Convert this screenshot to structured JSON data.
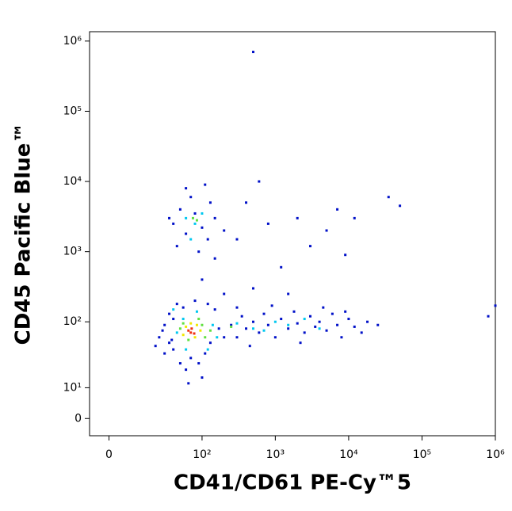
{
  "chart_data": {
    "type": "scatter",
    "xlabel": "CD41/CD61 PE-Cy™5",
    "ylabel": "CD45 Pacific Blue™",
    "xscale": "biexponential",
    "yscale": "biexponential",
    "xlim": [
      -7,
      1000000
    ],
    "ylim": [
      -5,
      1360000
    ],
    "xticks": [
      0,
      {
        "value": 100,
        "label": "10²"
      },
      {
        "value": 1000,
        "label": "10³"
      },
      {
        "value": 10000,
        "label": "10⁴"
      },
      {
        "value": 100000,
        "label": "10⁵"
      },
      {
        "value": 1000000,
        "label": "10⁶"
      }
    ],
    "yticks": [
      0,
      {
        "value": 10,
        "label": "10¹"
      },
      {
        "value": 100,
        "label": "10²"
      },
      {
        "value": 1000,
        "label": "10³"
      },
      {
        "value": 10000,
        "label": "10⁴"
      },
      {
        "value": 100000,
        "label": "10⁵"
      },
      {
        "value": 1000000,
        "label": "10⁶"
      }
    ],
    "series": [
      {
        "color": "#0010c8",
        "x": [
          25,
          30,
          22,
          35,
          40,
          45,
          28,
          38,
          50,
          60,
          70,
          90,
          110,
          130,
          150,
          170,
          200,
          40,
          55,
          80,
          120,
          30,
          65,
          100,
          35,
          250,
          300,
          350,
          400,
          500,
          600,
          700,
          800,
          1000,
          1200,
          1500,
          1800,
          2000,
          2500,
          3000,
          3500,
          4000,
          5000,
          6000,
          7000,
          8000,
          10000,
          12000,
          15000,
          18000,
          25000,
          300,
          450,
          900,
          2200,
          4500,
          9000,
          100,
          150,
          300,
          500,
          800,
          1200,
          2000,
          3000,
          5000,
          7000,
          9000,
          400,
          200,
          1500,
          12000,
          600,
          40,
          50,
          60,
          80,
          100,
          120,
          150,
          45,
          70,
          90,
          130,
          35,
          200,
          60,
          110,
          500,
          35000,
          50000,
          800000,
          1000000
        ],
        "values": [
          60,
          90,
          45,
          130,
          40,
          180,
          75,
          55,
          25,
          20,
          30,
          25,
          35,
          50,
          150,
          80,
          60,
          110,
          160,
          200,
          180,
          35,
          12,
          15,
          50,
          90,
          60,
          120,
          80,
          100,
          70,
          130,
          90,
          60,
          110,
          80,
          140,
          95,
          70,
          120,
          85,
          100,
          75,
          130,
          90,
          60,
          110,
          85,
          70,
          100,
          90,
          160,
          45,
          170,
          50,
          160,
          140,
          400,
          800,
          1500,
          300,
          2500,
          600,
          3000,
          1200,
          2000,
          4000,
          900,
          5000,
          250,
          250,
          3000,
          10000,
          2500,
          4000,
          1800,
          3500,
          2200,
          1500,
          3000,
          1200,
          6000,
          1000,
          5000,
          3000,
          2000,
          8000,
          9000,
          700000,
          6000,
          4500,
          120,
          170
        ]
      },
      {
        "color": "#00c8f0",
        "x": [
          45,
          55,
          85,
          140,
          160,
          120,
          60,
          300,
          500,
          1000,
          2500,
          4000,
          700,
          1500,
          60,
          80,
          70,
          100,
          40
        ],
        "values": [
          70,
          110,
          140,
          90,
          60,
          40,
          40,
          95,
          80,
          100,
          110,
          80,
          75,
          90,
          3000,
          2500,
          1500,
          3500,
          150
        ]
      },
      {
        "color": "#60e040",
        "x": [
          50,
          100,
          65,
          130,
          90,
          75,
          85,
          55,
          110,
          250
        ],
        "values": [
          80,
          90,
          55,
          75,
          110,
          3000,
          2800,
          95,
          60,
          85
        ]
      },
      {
        "color": "#f0e800",
        "x": [
          60,
          80,
          70,
          95,
          55,
          85
        ],
        "values": [
          85,
          60,
          95,
          75,
          65,
          90
        ]
      },
      {
        "color": "#f03010",
        "x": [
          70,
          65,
          78,
          72
        ],
        "values": [
          70,
          75,
          68,
          80
        ]
      }
    ]
  }
}
